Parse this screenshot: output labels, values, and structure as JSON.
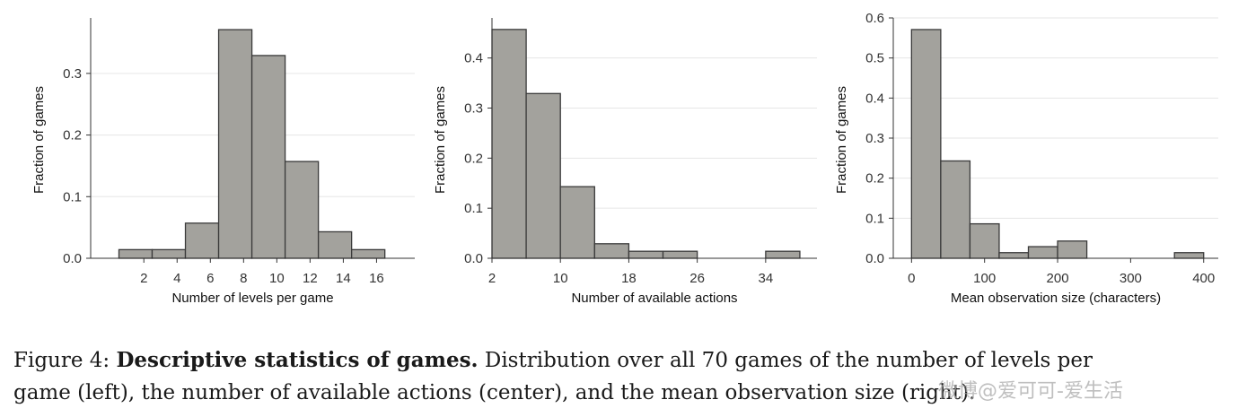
{
  "chart_data": [
    {
      "type": "bar",
      "subtype": "histogram",
      "xlabel": "Number of levels per game",
      "ylabel": "Fraction of games",
      "bin_edges": [
        0.5,
        2.5,
        4.5,
        6.5,
        8.5,
        10.5,
        12.5,
        14.5,
        16.5
      ],
      "values": [
        0.014,
        0.014,
        0.057,
        0.371,
        0.329,
        0.157,
        0.043,
        0.014
      ],
      "xticks": [
        2,
        4,
        6,
        8,
        10,
        12,
        14,
        16
      ],
      "xtick_labels": [
        "2",
        "4",
        "6",
        "8",
        "10",
        "12",
        "14",
        "16"
      ],
      "yticks": [
        0.0,
        0.1,
        0.2,
        0.3
      ],
      "ytick_labels": [
        "0.0",
        "0.1",
        "0.2",
        "0.3"
      ],
      "xlim": [
        -1.2,
        18.3
      ],
      "ylim": [
        0,
        0.39
      ],
      "grid": "horizontal",
      "bar_color": "#a3a29d",
      "edge_color": "#3a3a3a"
    },
    {
      "type": "bar",
      "subtype": "histogram",
      "xlabel": "Number of available actions",
      "ylabel": "Fraction of games",
      "bin_edges": [
        2,
        6,
        10,
        14,
        18,
        22,
        26,
        30,
        34,
        38
      ],
      "values": [
        0.457,
        0.329,
        0.143,
        0.029,
        0.014,
        0.014,
        0.0,
        0.0,
        0.014
      ],
      "xticks": [
        2,
        10,
        18,
        26,
        34
      ],
      "xtick_labels": [
        "2",
        "10",
        "18",
        "26",
        "34"
      ],
      "yticks": [
        0.0,
        0.1,
        0.2,
        0.3,
        0.4
      ],
      "ytick_labels": [
        "0.0",
        "0.1",
        "0.2",
        "0.3",
        "0.4"
      ],
      "xlim": [
        2,
        40
      ],
      "ylim": [
        0,
        0.48
      ],
      "grid": "horizontal",
      "bar_color": "#a3a29d",
      "edge_color": "#3a3a3a"
    },
    {
      "type": "bar",
      "subtype": "histogram",
      "xlabel": "Mean observation size (characters)",
      "ylabel": "Fraction of games",
      "bin_edges": [
        0,
        40,
        80,
        120,
        160,
        200,
        240,
        280,
        320,
        360,
        400
      ],
      "values": [
        0.571,
        0.243,
        0.086,
        0.014,
        0.029,
        0.043,
        0.0,
        0.0,
        0.0,
        0.014
      ],
      "xticks": [
        0,
        100,
        200,
        300,
        400
      ],
      "xtick_labels": [
        "0",
        "100",
        "200",
        "300",
        "400"
      ],
      "yticks": [
        0.0,
        0.1,
        0.2,
        0.3,
        0.4,
        0.5,
        0.6
      ],
      "ytick_labels": [
        "0.0",
        "0.1",
        "0.2",
        "0.3",
        "0.4",
        "0.5",
        "0.6"
      ],
      "xlim": [
        -25,
        420
      ],
      "ylim": [
        0,
        0.6
      ],
      "grid": "horizontal",
      "bar_color": "#a3a29d",
      "edge_color": "#3a3a3a"
    }
  ],
  "caption": {
    "prefix": "Figure 4: ",
    "bold": "Descriptive statistics of games.",
    "line1": " Distribution over all 70 games of the number of levels per",
    "line2": "game (left), the number of available actions (center), and the mean observation size (right)."
  },
  "watermark": "微博@爱可可-爱生活"
}
